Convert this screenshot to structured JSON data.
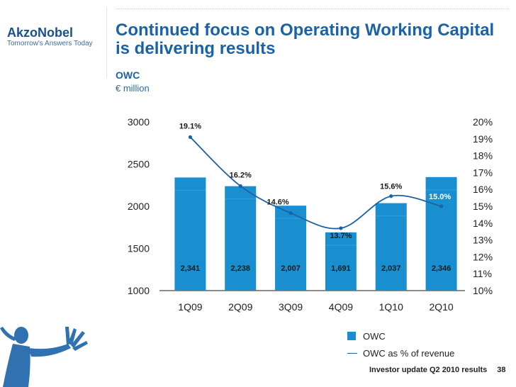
{
  "brand": {
    "name": "AkzoNobel",
    "tagline": "Tomorrow's Answers Today"
  },
  "title": "Continued focus on Operating Working Capital is delivering results",
  "subtitle": "OWC",
  "unit": "€ million",
  "colors": {
    "bar": "#1a8fd0",
    "bar_last": "#1a8fd0",
    "line": "#1a62a8",
    "title": "#1a62a8"
  },
  "chart_data": {
    "type": "bar",
    "categories": [
      "1Q09",
      "2Q09",
      "3Q09",
      "4Q09",
      "1Q10",
      "2Q10"
    ],
    "series": [
      {
        "name": "OWC",
        "type": "bar",
        "axis": "left",
        "values": [
          2341,
          2238,
          2007,
          1691,
          2037,
          2346
        ],
        "labels": [
          "2,341",
          "2,238",
          "2,007",
          "1,691",
          "2,037",
          "2,346"
        ]
      },
      {
        "name": "OWC as % of revenue",
        "type": "line",
        "axis": "right",
        "values": [
          19.1,
          16.2,
          14.6,
          13.7,
          15.6,
          15.0
        ],
        "labels": [
          "19.1%",
          "16.2%",
          "14.6%",
          "13.7%",
          "15.6%",
          "15.0%"
        ]
      }
    ],
    "y_left": {
      "min": 1000,
      "max": 3000,
      "ticks": [
        "3000",
        "2500",
        "2000",
        "1500",
        "1000"
      ]
    },
    "y_right": {
      "min": 10,
      "max": 20,
      "ticks": [
        "20%",
        "19%",
        "18%",
        "17%",
        "16%",
        "15%",
        "14%",
        "13%",
        "12%",
        "11%",
        "10%"
      ]
    },
    "legend_placement": "bottom-right",
    "grid": false
  },
  "legend": {
    "bar_label": "OWC",
    "line_label": "OWC as % of revenue"
  },
  "footer": {
    "text": "Investor update Q2 2010 results",
    "page": "38"
  }
}
